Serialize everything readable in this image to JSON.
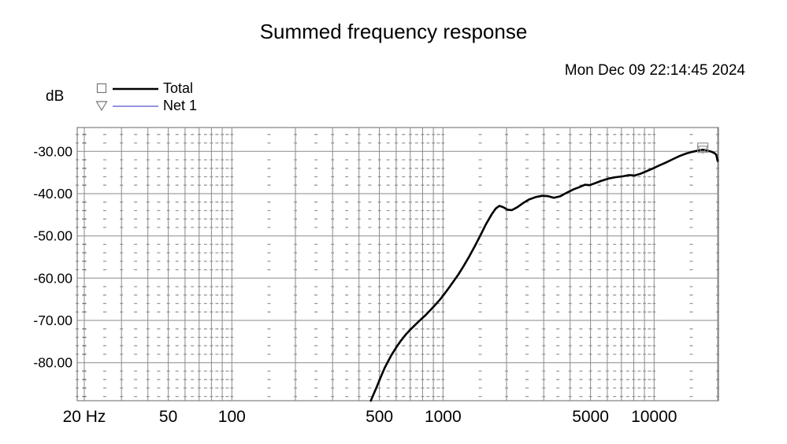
{
  "header": {
    "title": "Summed frequency response",
    "timestamp": "Mon Dec 09 22:14:45 2024"
  },
  "legend": {
    "axis_unit_label": "dB",
    "items": [
      {
        "label": "Total",
        "marker": "square",
        "color": "#000000",
        "line_width": 2.6
      },
      {
        "label": "Net 1",
        "marker": "triangle-down",
        "color": "#5a52cb",
        "line_width": 1.2
      }
    ]
  },
  "chart_data": {
    "type": "line",
    "title": "Summed frequency response",
    "x_scale": "log",
    "x_unit": "Hz",
    "x_range_hz": [
      18.6,
      20000
    ],
    "y_unit": "dB",
    "y_range_db": [
      -89.0,
      -24.4
    ],
    "grid": "major solid gray, minor rendered as dash-dot matrix every 2 dB",
    "grid_color": "#8a8a8a",
    "minor_dash_color": "#999999",
    "axis20hz_tick_color": "#666666",
    "y_major_ticks_db": [
      -30,
      -40,
      -50,
      -60,
      -70,
      -80
    ],
    "y_tick_labels": [
      "-30.00",
      "-40.00",
      "-50.00",
      "-60.00",
      "-70.00",
      "-80.00"
    ],
    "y_minor_rows_db": [
      -26,
      -28,
      -32,
      -34,
      -36,
      -38,
      -42,
      -44,
      -46,
      -48,
      -52,
      -54,
      -56,
      -58,
      -62,
      -64,
      -66,
      -68,
      -72,
      -74,
      -76,
      -78,
      -82,
      -84,
      -86,
      -88
    ],
    "x_solid_gridlines_hz": [
      20,
      30,
      40,
      50,
      60,
      70,
      80,
      90,
      100,
      200,
      300,
      400,
      500,
      600,
      700,
      800,
      900,
      1000,
      2000,
      3000,
      4000,
      5000,
      6000,
      7000,
      8000,
      9000,
      10000,
      20000
    ],
    "x_minor_gridlines_hz": [
      25,
      35,
      45,
      55,
      65,
      75,
      85,
      95,
      150,
      250,
      350,
      450,
      550,
      650,
      750,
      850,
      950,
      1500,
      2500,
      3500,
      4500,
      5500,
      6500,
      7500,
      8500,
      9500,
      15000
    ],
    "x_tick_labels": [
      {
        "hz": 20,
        "label": "20 Hz"
      },
      {
        "hz": 50,
        "label": "50"
      },
      {
        "hz": 100,
        "label": "100"
      },
      {
        "hz": 500,
        "label": "500"
      },
      {
        "hz": 1000,
        "label": "1000"
      },
      {
        "hz": 5000,
        "label": "5000"
      },
      {
        "hz": 10000,
        "label": "10000"
      }
    ],
    "cursor_marker": {
      "hz": 17000,
      "db": -29.6,
      "shapes": [
        "square",
        "triangle-down"
      ],
      "color": "#909090"
    },
    "series": [
      {
        "name": "Total",
        "color": "#000000",
        "width": 2.6,
        "points": [
          [
            455,
            -89.0
          ],
          [
            468,
            -87.6
          ],
          [
            485,
            -85.8
          ],
          [
            500,
            -84.2
          ],
          [
            515,
            -82.6
          ],
          [
            530,
            -81.2
          ],
          [
            548,
            -79.8
          ],
          [
            570,
            -78.2
          ],
          [
            600,
            -76.4
          ],
          [
            630,
            -74.9
          ],
          [
            665,
            -73.4
          ],
          [
            700,
            -72.2
          ],
          [
            740,
            -71.0
          ],
          [
            780,
            -69.9
          ],
          [
            825,
            -68.8
          ],
          [
            870,
            -67.6
          ],
          [
            920,
            -66.3
          ],
          [
            970,
            -65.0
          ],
          [
            1020,
            -63.6
          ],
          [
            1070,
            -62.2
          ],
          [
            1120,
            -60.8
          ],
          [
            1180,
            -59.2
          ],
          [
            1250,
            -57.2
          ],
          [
            1330,
            -54.9
          ],
          [
            1420,
            -52.3
          ],
          [
            1510,
            -49.7
          ],
          [
            1600,
            -47.2
          ],
          [
            1700,
            -44.9
          ],
          [
            1780,
            -43.5
          ],
          [
            1850,
            -42.9
          ],
          [
            1930,
            -43.2
          ],
          [
            2020,
            -43.8
          ],
          [
            2120,
            -43.9
          ],
          [
            2250,
            -43.2
          ],
          [
            2400,
            -42.2
          ],
          [
            2550,
            -41.4
          ],
          [
            2750,
            -40.8
          ],
          [
            2950,
            -40.5
          ],
          [
            3150,
            -40.6
          ],
          [
            3350,
            -41.0
          ],
          [
            3600,
            -40.6
          ],
          [
            3850,
            -39.8
          ],
          [
            4150,
            -39.0
          ],
          [
            4450,
            -38.4
          ],
          [
            4700,
            -37.9
          ],
          [
            4950,
            -38.0
          ],
          [
            5200,
            -37.6
          ],
          [
            5600,
            -37.0
          ],
          [
            6100,
            -36.4
          ],
          [
            6600,
            -36.1
          ],
          [
            7100,
            -35.9
          ],
          [
            7600,
            -35.6
          ],
          [
            8100,
            -35.7
          ],
          [
            8600,
            -35.3
          ],
          [
            9200,
            -34.7
          ],
          [
            9800,
            -34.1
          ],
          [
            10500,
            -33.4
          ],
          [
            11300,
            -32.7
          ],
          [
            12200,
            -31.9
          ],
          [
            13200,
            -31.1
          ],
          [
            14200,
            -30.5
          ],
          [
            15200,
            -30.1
          ],
          [
            16200,
            -29.8
          ],
          [
            17000,
            -29.6
          ],
          [
            17800,
            -29.8
          ],
          [
            18700,
            -30.1
          ],
          [
            19300,
            -30.4
          ],
          [
            19700,
            -30.8
          ],
          [
            20000,
            -32.3
          ]
        ]
      },
      {
        "name": "Net 1",
        "color": "#5a52cb",
        "width": 1.2,
        "overlaps_series": "Total",
        "points": []
      }
    ]
  }
}
